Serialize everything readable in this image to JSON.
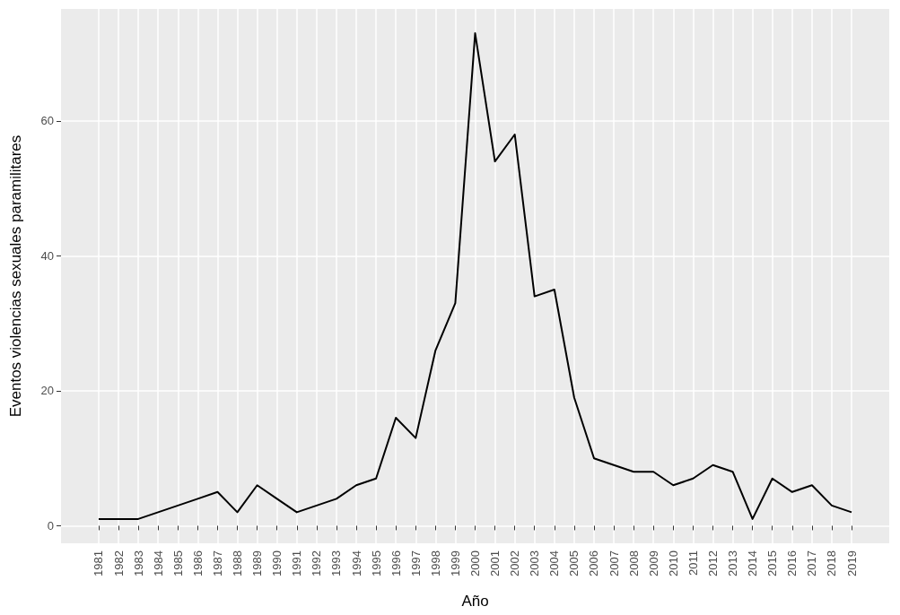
{
  "chart_data": {
    "type": "line",
    "xlabel": "Año",
    "ylabel": "Eventos violencias sexuales paramilitares",
    "x": [
      1981,
      1982,
      1983,
      1984,
      1985,
      1986,
      1987,
      1988,
      1989,
      1990,
      1991,
      1992,
      1993,
      1994,
      1995,
      1996,
      1997,
      1998,
      1999,
      2000,
      2001,
      2002,
      2003,
      2004,
      2005,
      2006,
      2007,
      2008,
      2009,
      2010,
      2011,
      2012,
      2013,
      2014,
      2015,
      2016,
      2017,
      2018,
      2019
    ],
    "series": [
      {
        "color": "#000000",
        "values": [
          1,
          1,
          1,
          2,
          3,
          4,
          5,
          2,
          6,
          4,
          2,
          3,
          4,
          6,
          7,
          16,
          13,
          26,
          33,
          73,
          54,
          58,
          34,
          35,
          19,
          10,
          9,
          8,
          8,
          6,
          7,
          9,
          8,
          1,
          7,
          5,
          6,
          3,
          2
        ]
      }
    ],
    "xlim": [
      1979.1,
      2020.9
    ],
    "xticks": [
      1981,
      1982,
      1983,
      1984,
      1985,
      1986,
      1987,
      1988,
      1989,
      1990,
      1991,
      1992,
      1993,
      1994,
      1995,
      1996,
      1997,
      1998,
      1999,
      2000,
      2001,
      2002,
      2003,
      2004,
      2005,
      2006,
      2007,
      2008,
      2009,
      2010,
      2011,
      2012,
      2013,
      2014,
      2015,
      2016,
      2017,
      2018,
      2019
    ],
    "ylim": [
      -2.6,
      76.6
    ],
    "yticks": [
      0,
      20,
      40,
      60
    ],
    "grid": true,
    "marker": "none",
    "line_style": "solid"
  }
}
